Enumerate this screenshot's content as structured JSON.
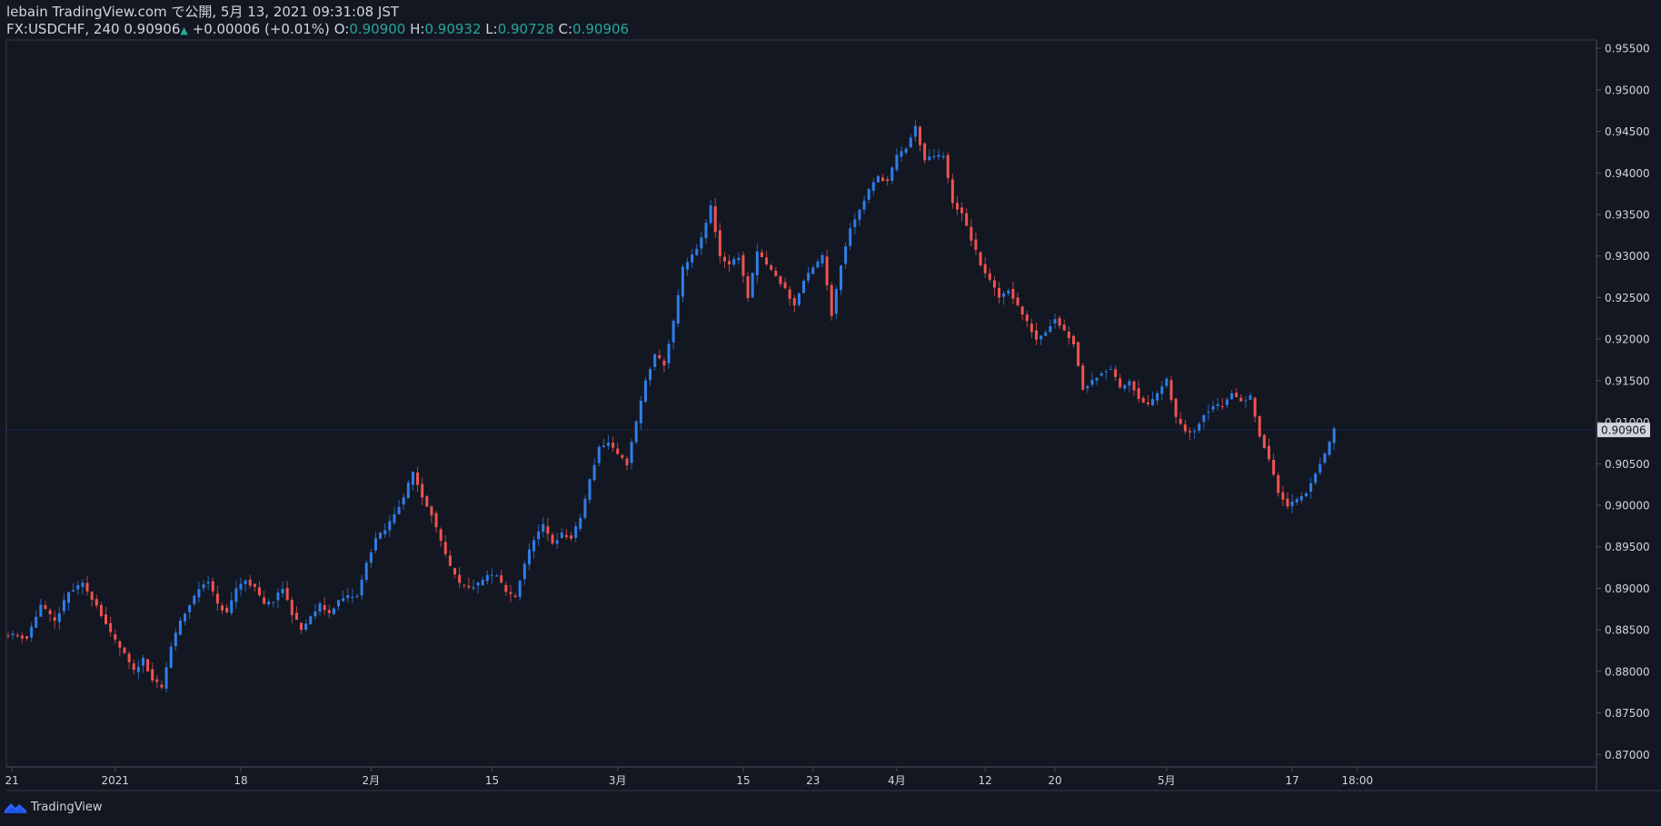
{
  "header": {
    "line1": "lebain TradingView.com で公開, 5月 13, 2021 09:31:08 JST",
    "symbol": "FX:USDCHF, 240",
    "last": "0.90906",
    "change": "+0.00006 (+0.01%)",
    "o_label": "O:",
    "o_value": "0.90900",
    "h_label": "H:",
    "h_value": "0.90932",
    "l_label": "L:",
    "l_value": "0.90728",
    "c_label": "C:",
    "c_value": "0.90906"
  },
  "footer": {
    "brand": "TradingView",
    "logo_icon": "tradingview-logo-icon"
  },
  "colors": {
    "up": "#2962ff",
    "up_candle": "#2f7ee8",
    "down": "#ef5350",
    "bg": "#131722",
    "axis_text": "#d1d4dc",
    "grid": "#363a45"
  },
  "chart_data": {
    "type": "candlestick",
    "symbol": "FX:USDCHF",
    "interval": "240",
    "last_price": 0.90906,
    "last_price_label": "0.90906",
    "y_ticks": [
      "0.95500",
      "0.95000",
      "0.94500",
      "0.94000",
      "0.93500",
      "0.93000",
      "0.92500",
      "0.92000",
      "0.91500",
      "0.91000",
      "0.90500",
      "0.90000",
      "0.89500",
      "0.89000",
      "0.88500",
      "0.88000",
      "0.87500",
      "0.87000"
    ],
    "ylim": [
      0.8685,
      0.956
    ],
    "x_ticks": [
      {
        "label": "21",
        "index": 0.8
      },
      {
        "label": "2021",
        "index": 23
      },
      {
        "label": "18",
        "index": 50
      },
      {
        "label": "2月",
        "index": 78
      },
      {
        "label": "15",
        "index": 104
      },
      {
        "label": "3月",
        "index": 131
      },
      {
        "label": "15",
        "index": 158
      },
      {
        "label": "23",
        "index": 173
      },
      {
        "label": "4月",
        "index": 191
      },
      {
        "label": "12",
        "index": 210
      },
      {
        "label": "20",
        "index": 225
      },
      {
        "label": "5月",
        "index": 249
      },
      {
        "label": "17",
        "index": 276
      },
      {
        "label": "18:00",
        "index": 290
      }
    ],
    "x_count": 300,
    "close_path": [
      [
        0,
        0.8845
      ],
      [
        4,
        0.884
      ],
      [
        7,
        0.888
      ],
      [
        10,
        0.886
      ],
      [
        13,
        0.8895
      ],
      [
        16,
        0.8905
      ],
      [
        19,
        0.888
      ],
      [
        22,
        0.8845
      ],
      [
        25,
        0.882
      ],
      [
        27,
        0.88
      ],
      [
        29,
        0.8815
      ],
      [
        31,
        0.879
      ],
      [
        33,
        0.878
      ],
      [
        35,
        0.883
      ],
      [
        37,
        0.886
      ],
      [
        39,
        0.888
      ],
      [
        41,
        0.89
      ],
      [
        43,
        0.891
      ],
      [
        45,
        0.888
      ],
      [
        47,
        0.887
      ],
      [
        49,
        0.89
      ],
      [
        51,
        0.891
      ],
      [
        53,
        0.89
      ],
      [
        55,
        0.888
      ],
      [
        57,
        0.8885
      ],
      [
        59,
        0.89
      ],
      [
        61,
        0.887
      ],
      [
        63,
        0.885
      ],
      [
        65,
        0.8865
      ],
      [
        67,
        0.888
      ],
      [
        69,
        0.887
      ],
      [
        71,
        0.8885
      ],
      [
        73,
        0.889
      ],
      [
        75,
        0.889
      ],
      [
        77,
        0.893
      ],
      [
        79,
        0.896
      ],
      [
        81,
        0.897
      ],
      [
        83,
        0.899
      ],
      [
        85,
        0.901
      ],
      [
        87,
        0.904
      ],
      [
        89,
        0.901
      ],
      [
        91,
        0.899
      ],
      [
        93,
        0.8955
      ],
      [
        95,
        0.8925
      ],
      [
        97,
        0.8905
      ],
      [
        99,
        0.89
      ],
      [
        101,
        0.8905
      ],
      [
        103,
        0.8915
      ],
      [
        105,
        0.8915
      ],
      [
        107,
        0.8895
      ],
      [
        109,
        0.889
      ],
      [
        111,
        0.893
      ],
      [
        113,
        0.896
      ],
      [
        115,
        0.8975
      ],
      [
        117,
        0.8955
      ],
      [
        119,
        0.8965
      ],
      [
        121,
        0.896
      ],
      [
        123,
        0.8985
      ],
      [
        125,
        0.903
      ],
      [
        127,
        0.907
      ],
      [
        129,
        0.9075
      ],
      [
        131,
        0.906
      ],
      [
        133,
        0.905
      ],
      [
        135,
        0.91
      ],
      [
        137,
        0.915
      ],
      [
        139,
        0.918
      ],
      [
        141,
        0.917
      ],
      [
        143,
        0.922
      ],
      [
        145,
        0.9285
      ],
      [
        147,
        0.93
      ],
      [
        149,
        0.932
      ],
      [
        151,
        0.936
      ],
      [
        153,
        0.93
      ],
      [
        155,
        0.929
      ],
      [
        157,
        0.93
      ],
      [
        159,
        0.925
      ],
      [
        161,
        0.9305
      ],
      [
        163,
        0.929
      ],
      [
        165,
        0.9275
      ],
      [
        167,
        0.926
      ],
      [
        169,
        0.924
      ],
      [
        171,
        0.927
      ],
      [
        173,
        0.9285
      ],
      [
        175,
        0.93
      ],
      [
        177,
        0.923
      ],
      [
        179,
        0.929
      ],
      [
        181,
        0.9335
      ],
      [
        183,
        0.9355
      ],
      [
        185,
        0.938
      ],
      [
        187,
        0.9395
      ],
      [
        189,
        0.939
      ],
      [
        191,
        0.942
      ],
      [
        193,
        0.943
      ],
      [
        195,
        0.9455
      ],
      [
        197,
        0.9415
      ],
      [
        199,
        0.942
      ],
      [
        201,
        0.942
      ],
      [
        203,
        0.9365
      ],
      [
        205,
        0.935
      ],
      [
        207,
        0.932
      ],
      [
        209,
        0.929
      ],
      [
        211,
        0.927
      ],
      [
        213,
        0.925
      ],
      [
        215,
        0.926
      ],
      [
        217,
        0.924
      ],
      [
        219,
        0.922
      ],
      [
        221,
        0.92
      ],
      [
        223,
        0.921
      ],
      [
        225,
        0.9225
      ],
      [
        227,
        0.921
      ],
      [
        229,
        0.9195
      ],
      [
        231,
        0.914
      ],
      [
        233,
        0.915
      ],
      [
        235,
        0.916
      ],
      [
        237,
        0.9165
      ],
      [
        239,
        0.914
      ],
      [
        241,
        0.915
      ],
      [
        243,
        0.913
      ],
      [
        245,
        0.912
      ],
      [
        247,
        0.9135
      ],
      [
        249,
        0.915
      ],
      [
        251,
        0.9105
      ],
      [
        253,
        0.909
      ],
      [
        255,
        0.909
      ],
      [
        257,
        0.911
      ],
      [
        259,
        0.912
      ],
      [
        261,
        0.912
      ],
      [
        263,
        0.9135
      ],
      [
        265,
        0.9125
      ],
      [
        267,
        0.913
      ],
      [
        269,
        0.9085
      ],
      [
        271,
        0.9055
      ],
      [
        273,
        0.9015
      ],
      [
        275,
        0.9
      ],
      [
        277,
        0.9005
      ],
      [
        279,
        0.9015
      ],
      [
        281,
        0.904
      ],
      [
        283,
        0.906
      ],
      [
        285,
        0.9091
      ]
    ]
  }
}
